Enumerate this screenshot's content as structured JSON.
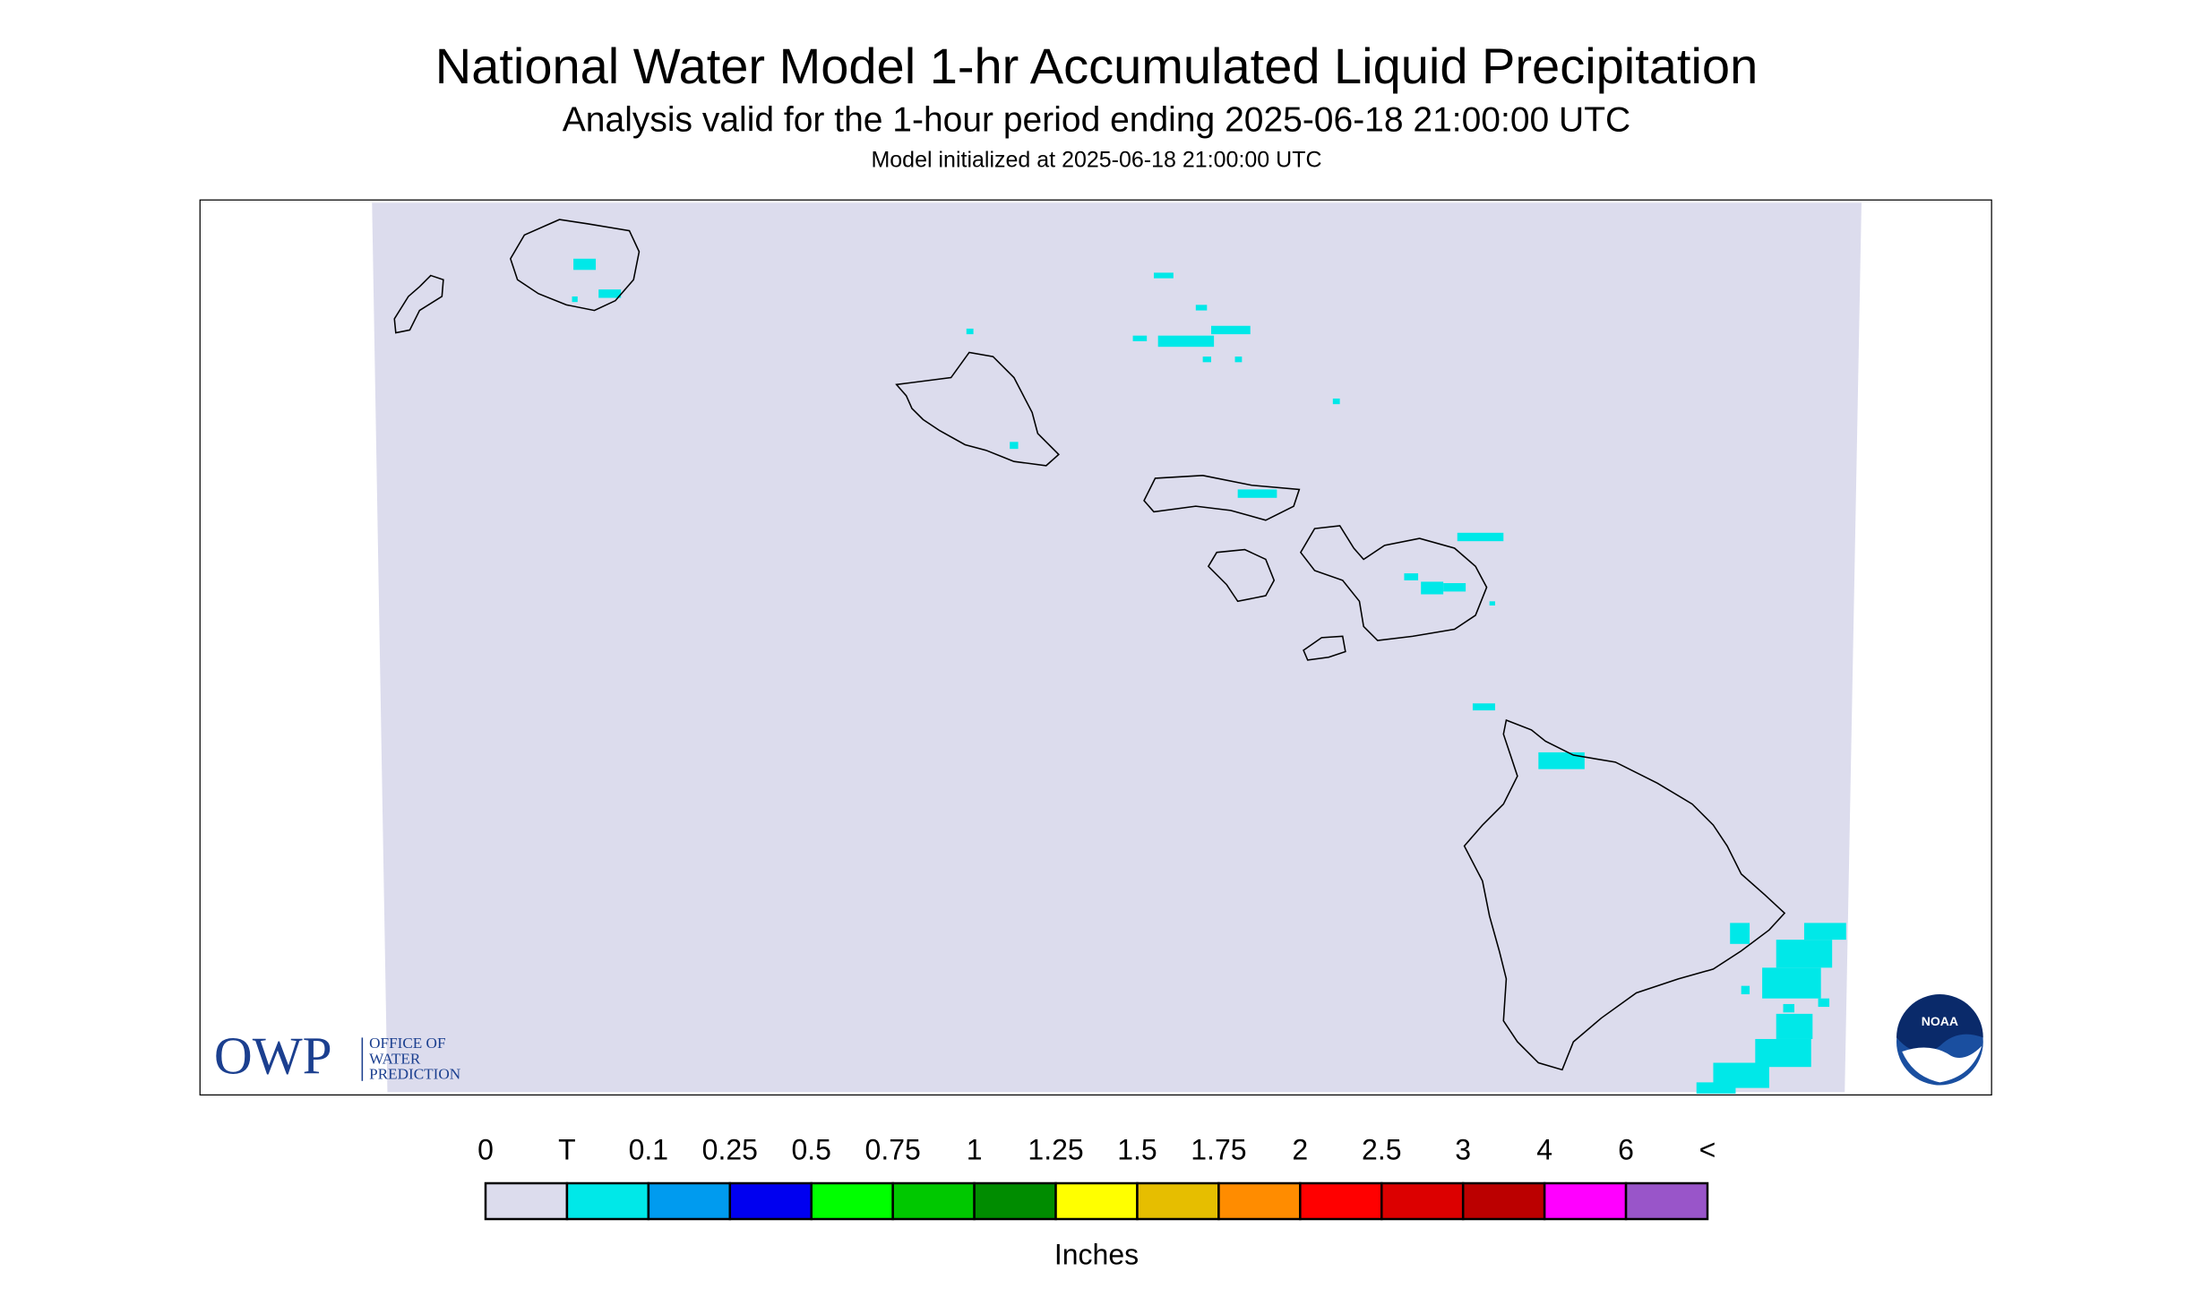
{
  "header": {
    "title": "National Water Model 1-hr Accumulated Liquid Precipitation",
    "subtitle": "Analysis valid for the 1-hour period ending 2025-06-18 21:00:00 UTC",
    "init_text": "Model initialized at 2025-06-18 21:00:00 UTC"
  },
  "legend": {
    "labels": [
      "0",
      "T",
      "0.1",
      "0.25",
      "0.5",
      "0.75",
      "1",
      "1.25",
      "1.5",
      "1.75",
      "2",
      "2.5",
      "3",
      "4",
      "6",
      "<"
    ],
    "colors": [
      "#dcdced",
      "#00e8e8",
      "#009bef",
      "#0000f0",
      "#00ff00",
      "#00c800",
      "#008c00",
      "#ffff00",
      "#e6be00",
      "#ff8c00",
      "#ff0000",
      "#dc0000",
      "#bb0000",
      "#ff00ff",
      "#9955c9"
    ],
    "unit": "Inches"
  },
  "logos": {
    "owp": "OWP",
    "office": [
      "OFFICE OF",
      "WATER",
      "PREDICTION"
    ],
    "noaa": "NOAA"
  }
}
